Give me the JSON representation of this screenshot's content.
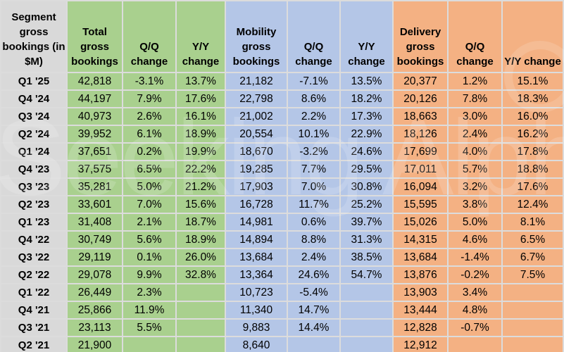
{
  "colors": {
    "label_bg": "#d9d9d9",
    "total_bg": "#a9d08e",
    "mobility_bg": "#b4c6e7",
    "delivery_bg": "#f4b183",
    "gridline": "#dcdcdc",
    "text": "#000000"
  },
  "watermark": {
    "text": "Seeking Alpha"
  },
  "chart_data": {
    "type": "table",
    "title": "Segment gross bookings (in $M)",
    "corner_header": "Segment gross bookings (in $M)",
    "column_headers": [
      "Total gross bookings",
      "Q/Q change",
      "Y/Y change",
      "Mobility gross bookings",
      "Q/Q change",
      "Y/Y change",
      "Delivery gross bookings",
      "Q/Q change",
      "Y/Y change"
    ],
    "quarters": [
      "Q1 '25",
      "Q4 '24",
      "Q3 '24",
      "Q2 '24",
      "Q1 '24",
      "Q4 '23",
      "Q3 '23",
      "Q2 '23",
      "Q1 '23",
      "Q4 '22",
      "Q3 '22",
      "Q2 '22",
      "Q1 '22",
      "Q4 '21",
      "Q3 '21",
      "Q2 '21"
    ],
    "rows": [
      [
        "42,818",
        "-3.1%",
        "13.7%",
        "21,182",
        "-7.1%",
        "13.5%",
        "20,377",
        "1.2%",
        "15.1%"
      ],
      [
        "44,197",
        "7.9%",
        "17.6%",
        "22,798",
        "8.6%",
        "18.2%",
        "20,126",
        "7.8%",
        "18.3%"
      ],
      [
        "40,973",
        "2.6%",
        "16.1%",
        "21,002",
        "2.2%",
        "17.3%",
        "18,663",
        "3.0%",
        "16.0%"
      ],
      [
        "39,952",
        "6.1%",
        "18.9%",
        "20,554",
        "10.1%",
        "22.9%",
        "18,126",
        "2.4%",
        "16.2%"
      ],
      [
        "37,651",
        "0.2%",
        "19.9%",
        "18,670",
        "-3.2%",
        "24.6%",
        "17,699",
        "4.0%",
        "17.8%"
      ],
      [
        "37,575",
        "6.5%",
        "22.2%",
        "19,285",
        "7.7%",
        "29.5%",
        "17,011",
        "5.7%",
        "18.8%"
      ],
      [
        "35,281",
        "5.0%",
        "21.2%",
        "17,903",
        "7.0%",
        "30.8%",
        "16,094",
        "3.2%",
        "17.6%"
      ],
      [
        "33,601",
        "7.0%",
        "15.6%",
        "16,728",
        "11.7%",
        "25.2%",
        "15,595",
        "3.8%",
        "12.4%"
      ],
      [
        "31,408",
        "2.1%",
        "18.7%",
        "14,981",
        "0.6%",
        "39.7%",
        "15,026",
        "5.0%",
        "8.1%"
      ],
      [
        "30,749",
        "5.6%",
        "18.9%",
        "14,894",
        "8.8%",
        "31.3%",
        "14,315",
        "4.6%",
        "6.5%"
      ],
      [
        "29,119",
        "0.1%",
        "26.0%",
        "13,684",
        "2.4%",
        "38.5%",
        "13,684",
        "-1.4%",
        "6.7%"
      ],
      [
        "29,078",
        "9.9%",
        "32.8%",
        "13,364",
        "24.6%",
        "54.7%",
        "13,876",
        "-0.2%",
        "7.5%"
      ],
      [
        "26,449",
        "2.3%",
        "",
        "10,723",
        "-5.4%",
        "",
        "13,903",
        "3.4%",
        ""
      ],
      [
        "25,866",
        "11.9%",
        "",
        "11,340",
        "14.7%",
        "",
        "13,444",
        "4.8%",
        ""
      ],
      [
        "23,113",
        "5.5%",
        "",
        "9,883",
        "14.4%",
        "",
        "12,828",
        "-0.7%",
        ""
      ],
      [
        "21,900",
        "",
        "",
        "8,640",
        "",
        "",
        "12,912",
        "",
        ""
      ]
    ]
  }
}
